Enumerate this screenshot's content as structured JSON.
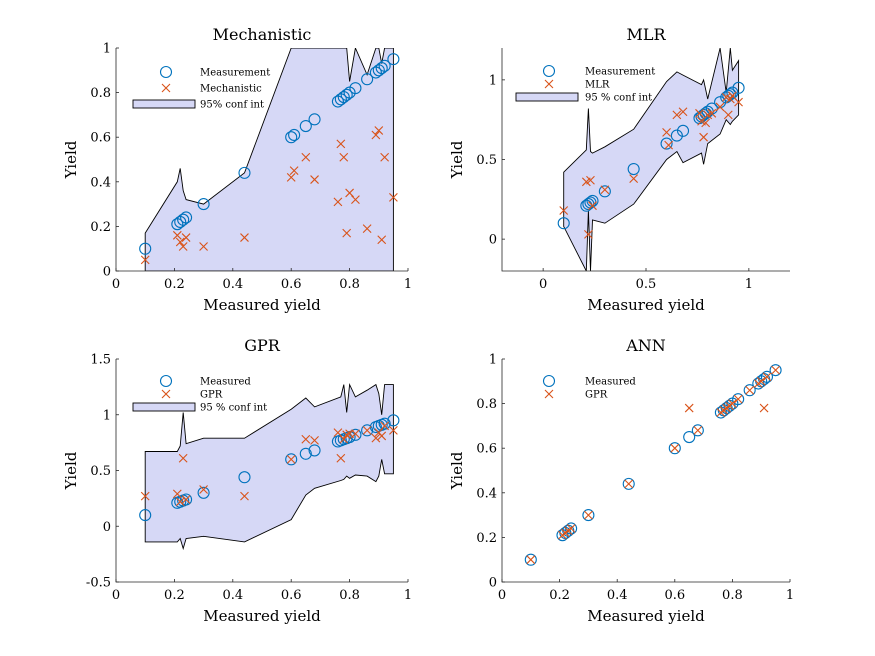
{
  "colors": {
    "measured": "#0072BD",
    "predicted": "#D95319",
    "band_fill": "#D6D8F6",
    "band_line": "#000000"
  },
  "chart_data": [
    {
      "type": "scatter",
      "title": "Mechanistic",
      "xlabel": "Measured yield",
      "ylabel": "Yield",
      "xlim": [
        0,
        1
      ],
      "ylim": [
        0,
        1
      ],
      "xticks": [
        0,
        0.2,
        0.4,
        0.6,
        0.8,
        1
      ],
      "yticks": [
        0,
        0.2,
        0.4,
        0.6,
        0.8,
        1
      ],
      "xtick_labels": [
        "0",
        "0.2",
        "0.4",
        "0.6",
        "0.8",
        "1"
      ],
      "ytick_labels": [
        "0",
        "0.2",
        "0.4",
        "0.6",
        "0.8",
        "1"
      ],
      "legend": [
        "Measurement",
        "Mechanistic",
        "95% conf int"
      ],
      "legend_position": "top-left",
      "band": {
        "x": [
          0.1,
          0.21,
          0.22,
          0.23,
          0.24,
          0.3,
          0.44,
          0.6,
          0.61,
          0.65,
          0.68,
          0.77,
          0.78,
          0.79,
          0.8,
          0.82,
          0.86,
          0.89,
          0.9,
          0.91,
          0.92,
          0.93,
          0.95
        ],
        "upper": [
          0.17,
          0.4,
          0.46,
          0.36,
          0.32,
          0.3,
          0.44,
          1.0,
          1.0,
          1.0,
          1.0,
          1.0,
          1.0,
          1.0,
          0.85,
          1.0,
          0.88,
          1.0,
          1.0,
          0.93,
          1.0,
          1.0,
          1.0
        ],
        "lower": [
          0.0,
          0.0,
          0.0,
          0.0,
          0.0,
          0.0,
          0.0,
          0.0,
          0.0,
          0.0,
          0.0,
          0.0,
          0.0,
          0.0,
          0.0,
          0.0,
          0.0,
          0.0,
          0.0,
          0.0,
          0.0,
          0.0,
          0.0
        ]
      },
      "series": [
        {
          "name": "Measurement",
          "marker": "circle",
          "x": [
            0.1,
            0.21,
            0.22,
            0.23,
            0.24,
            0.3,
            0.44,
            0.6,
            0.61,
            0.65,
            0.68,
            0.76,
            0.77,
            0.78,
            0.79,
            0.8,
            0.82,
            0.86,
            0.89,
            0.9,
            0.91,
            0.92,
            0.95
          ],
          "y": [
            0.1,
            0.21,
            0.22,
            0.23,
            0.24,
            0.3,
            0.44,
            0.6,
            0.61,
            0.65,
            0.68,
            0.76,
            0.77,
            0.78,
            0.79,
            0.8,
            0.82,
            0.86,
            0.89,
            0.9,
            0.91,
            0.92,
            0.95
          ]
        },
        {
          "name": "Mechanistic",
          "marker": "x",
          "x": [
            0.1,
            0.21,
            0.22,
            0.23,
            0.24,
            0.3,
            0.44,
            0.6,
            0.61,
            0.65,
            0.68,
            0.76,
            0.77,
            0.78,
            0.79,
            0.8,
            0.82,
            0.86,
            0.89,
            0.9,
            0.91,
            0.92,
            0.95
          ],
          "y": [
            0.05,
            0.16,
            0.13,
            0.11,
            0.15,
            0.11,
            0.15,
            0.42,
            0.45,
            0.51,
            0.41,
            0.31,
            0.57,
            0.51,
            0.17,
            0.35,
            0.32,
            0.19,
            0.61,
            0.63,
            0.14,
            0.51,
            0.33
          ]
        }
      ]
    },
    {
      "type": "scatter",
      "title": "MLR",
      "xlabel": "Measured yield",
      "ylabel": "Yield",
      "xlim": [
        -0.2,
        1.2
      ],
      "ylim": [
        -0.2,
        1.2
      ],
      "xticks": [
        0,
        0.5,
        1
      ],
      "yticks": [
        0,
        0.5,
        1
      ],
      "xtick_labels": [
        "0",
        "0.5",
        "1"
      ],
      "ytick_labels": [
        "0",
        "0.5",
        "1"
      ],
      "legend": [
        "Measurement",
        "MLR",
        "95 % conf int"
      ],
      "legend_position": "top-left",
      "band": {
        "x": [
          0.1,
          0.21,
          0.22,
          0.23,
          0.24,
          0.3,
          0.44,
          0.6,
          0.65,
          0.68,
          0.77,
          0.78,
          0.8,
          0.86,
          0.89,
          0.91,
          0.92,
          0.95
        ],
        "upper": [
          0.42,
          0.56,
          0.82,
          0.55,
          0.54,
          0.58,
          0.69,
          0.99,
          1.05,
          1.03,
          0.97,
          1.0,
          0.88,
          1.2,
          0.92,
          1.2,
          1.06,
          1.12
        ],
        "lower": [
          0.08,
          -0.2,
          0.18,
          -0.2,
          0.12,
          0.1,
          0.22,
          0.5,
          0.55,
          0.48,
          0.54,
          0.47,
          0.6,
          0.66,
          0.75,
          0.72,
          0.74,
          0.78
        ]
      },
      "series": [
        {
          "name": "Measurement",
          "marker": "circle",
          "x": [
            0.1,
            0.21,
            0.22,
            0.23,
            0.24,
            0.3,
            0.44,
            0.6,
            0.65,
            0.68,
            0.76,
            0.77,
            0.78,
            0.79,
            0.8,
            0.82,
            0.86,
            0.89,
            0.9,
            0.91,
            0.92,
            0.95
          ],
          "y": [
            0.1,
            0.21,
            0.22,
            0.23,
            0.24,
            0.3,
            0.44,
            0.6,
            0.65,
            0.68,
            0.76,
            0.77,
            0.78,
            0.79,
            0.8,
            0.82,
            0.86,
            0.89,
            0.9,
            0.91,
            0.92,
            0.95
          ]
        },
        {
          "name": "MLR",
          "marker": "x",
          "x": [
            0.1,
            0.21,
            0.22,
            0.23,
            0.24,
            0.3,
            0.44,
            0.6,
            0.61,
            0.65,
            0.68,
            0.76,
            0.77,
            0.78,
            0.79,
            0.8,
            0.82,
            0.86,
            0.89,
            0.9,
            0.91,
            0.92,
            0.95
          ],
          "y": [
            0.18,
            0.36,
            0.03,
            0.37,
            0.21,
            0.31,
            0.38,
            0.67,
            0.59,
            0.78,
            0.8,
            0.79,
            0.74,
            0.64,
            0.73,
            0.78,
            0.79,
            0.83,
            0.89,
            0.78,
            0.88,
            0.9,
            0.86
          ]
        }
      ]
    },
    {
      "type": "scatter",
      "title": "GPR",
      "xlabel": "Measured yield",
      "ylabel": "Yield",
      "xlim": [
        0,
        1
      ],
      "ylim": [
        -0.5,
        1.5
      ],
      "xticks": [
        0,
        0.2,
        0.4,
        0.6,
        0.8,
        1
      ],
      "yticks": [
        -0.5,
        0,
        0.5,
        1,
        1.5
      ],
      "xtick_labels": [
        "0",
        "0.2",
        "0.4",
        "0.6",
        "0.8",
        "1"
      ],
      "ytick_labels": [
        "-0.5",
        "0",
        "0.5",
        "1",
        "1.5"
      ],
      "legend": [
        "Measured",
        "GPR",
        "95 % conf int"
      ],
      "legend_position": "top-left",
      "band": {
        "x": [
          0.1,
          0.21,
          0.22,
          0.23,
          0.24,
          0.3,
          0.44,
          0.6,
          0.65,
          0.68,
          0.77,
          0.78,
          0.79,
          0.8,
          0.82,
          0.86,
          0.89,
          0.9,
          0.91,
          0.92,
          0.95
        ],
        "upper": [
          0.67,
          0.67,
          0.72,
          1.02,
          0.74,
          0.79,
          0.79,
          1.05,
          1.15,
          1.07,
          1.16,
          1.27,
          1.02,
          1.27,
          1.16,
          1.22,
          1.27,
          1.19,
          1.0,
          1.27,
          1.27
        ],
        "lower": [
          -0.14,
          -0.14,
          -0.11,
          -0.2,
          -0.11,
          -0.09,
          -0.14,
          0.06,
          0.28,
          0.34,
          0.41,
          0.42,
          0.45,
          0.43,
          0.46,
          0.45,
          0.4,
          0.45,
          0.6,
          0.47,
          0.47
        ]
      },
      "series": [
        {
          "name": "Measured",
          "marker": "circle",
          "x": [
            0.1,
            0.21,
            0.22,
            0.23,
            0.24,
            0.3,
            0.44,
            0.6,
            0.65,
            0.68,
            0.76,
            0.77,
            0.78,
            0.79,
            0.8,
            0.82,
            0.86,
            0.89,
            0.9,
            0.91,
            0.92,
            0.95
          ],
          "y": [
            0.1,
            0.21,
            0.22,
            0.23,
            0.24,
            0.3,
            0.44,
            0.6,
            0.65,
            0.68,
            0.76,
            0.77,
            0.78,
            0.79,
            0.8,
            0.82,
            0.86,
            0.89,
            0.9,
            0.91,
            0.92,
            0.95
          ]
        },
        {
          "name": "GPR",
          "marker": "x",
          "x": [
            0.1,
            0.21,
            0.22,
            0.23,
            0.24,
            0.3,
            0.44,
            0.6,
            0.65,
            0.68,
            0.76,
            0.77,
            0.78,
            0.79,
            0.8,
            0.82,
            0.86,
            0.89,
            0.9,
            0.91,
            0.92,
            0.95
          ],
          "y": [
            0.27,
            0.29,
            0.22,
            0.61,
            0.24,
            0.33,
            0.27,
            0.6,
            0.78,
            0.77,
            0.84,
            0.61,
            0.78,
            0.82,
            0.83,
            0.83,
            0.86,
            0.79,
            0.84,
            0.81,
            0.9,
            0.86
          ]
        }
      ]
    },
    {
      "type": "scatter",
      "title": "ANN",
      "xlabel": "Measured yield",
      "ylabel": "Yield",
      "xlim": [
        0,
        1
      ],
      "ylim": [
        0,
        1
      ],
      "xticks": [
        0,
        0.2,
        0.4,
        0.6,
        0.8,
        1
      ],
      "yticks": [
        0,
        0.2,
        0.4,
        0.6,
        0.8,
        1
      ],
      "xtick_labels": [
        "0",
        "0.2",
        "0.4",
        "0.6",
        "0.8",
        "1"
      ],
      "ytick_labels": [
        "0",
        "0.2",
        "0.4",
        "0.6",
        "0.8",
        "1"
      ],
      "legend": [
        "Measured",
        "GPR"
      ],
      "legend_position": "top-left",
      "series": [
        {
          "name": "Measured",
          "marker": "circle",
          "x": [
            0.1,
            0.21,
            0.22,
            0.23,
            0.24,
            0.3,
            0.44,
            0.6,
            0.65,
            0.68,
            0.76,
            0.77,
            0.78,
            0.79,
            0.8,
            0.82,
            0.86,
            0.89,
            0.9,
            0.91,
            0.92,
            0.95
          ],
          "y": [
            0.1,
            0.21,
            0.22,
            0.23,
            0.24,
            0.3,
            0.44,
            0.6,
            0.65,
            0.68,
            0.76,
            0.77,
            0.78,
            0.79,
            0.8,
            0.82,
            0.86,
            0.89,
            0.9,
            0.91,
            0.92,
            0.95
          ]
        },
        {
          "name": "GPR",
          "marker": "x",
          "x": [
            0.1,
            0.21,
            0.22,
            0.23,
            0.24,
            0.3,
            0.44,
            0.6,
            0.65,
            0.68,
            0.76,
            0.77,
            0.78,
            0.79,
            0.8,
            0.82,
            0.86,
            0.89,
            0.9,
            0.91,
            0.92,
            0.95
          ],
          "y": [
            0.1,
            0.21,
            0.22,
            0.23,
            0.24,
            0.3,
            0.44,
            0.6,
            0.78,
            0.68,
            0.76,
            0.77,
            0.78,
            0.79,
            0.8,
            0.82,
            0.86,
            0.89,
            0.9,
            0.78,
            0.92,
            0.95
          ]
        }
      ]
    }
  ]
}
